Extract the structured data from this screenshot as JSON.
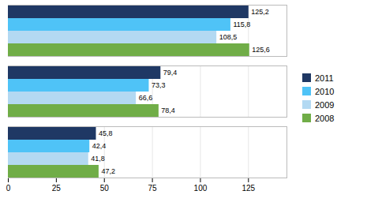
{
  "chart_data": {
    "type": "bar",
    "orientation": "horizontal",
    "categories": [
      null,
      null,
      null
    ],
    "series": [
      {
        "name": "2011",
        "color": "#1F3864",
        "values": [
          125.2,
          79.4,
          45.8
        ],
        "value_labels": [
          "125,2",
          "79,4",
          "45,8"
        ]
      },
      {
        "name": "2010",
        "color": "#4FC3F7",
        "values": [
          115.8,
          73.3,
          42.4
        ],
        "value_labels": [
          "115,8",
          "73,3",
          "42,4"
        ]
      },
      {
        "name": "2009",
        "color": "#B3D9F2",
        "values": [
          108.5,
          66.6,
          41.8
        ],
        "value_labels": [
          "108,5",
          "66,6",
          "41,8"
        ]
      },
      {
        "name": "2008",
        "color": "#70AD47",
        "values": [
          125.6,
          78.4,
          47.2
        ],
        "value_labels": [
          "125,6",
          "78,4",
          "47,2"
        ]
      }
    ],
    "xlim": [
      0,
      145
    ],
    "xticks": [
      0,
      25,
      50,
      75,
      100,
      125
    ],
    "grid": true,
    "legend": "right",
    "data_labels": true,
    "tick_labels": "x"
  }
}
